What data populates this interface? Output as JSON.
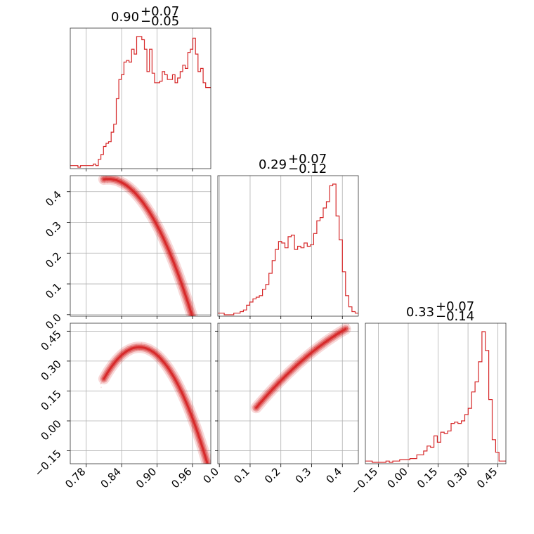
{
  "chart_data": {
    "type": "corner",
    "color": "#d62728",
    "parameters": [
      {
        "label": "",
        "median": "0.90",
        "plus": "+0.07",
        "minus": "−0.05",
        "range": [
          0.753,
          0.991
        ],
        "ticks": [
          0.78,
          0.84,
          0.9,
          0.96
        ],
        "tick_labels": [
          "0.78",
          "0.84",
          "0.90",
          "0.96"
        ]
      },
      {
        "label": "",
        "median": "0.29",
        "plus": "+0.07",
        "minus": "−0.12",
        "range": [
          -0.005,
          0.452
        ],
        "ticks": [
          0.0,
          0.1,
          0.2,
          0.3,
          0.4
        ],
        "tick_labels": [
          "0.0",
          "0.1",
          "0.2",
          "0.3",
          "0.4"
        ]
      },
      {
        "label": "",
        "median": "0.33",
        "plus": "+0.07",
        "minus": "−0.14",
        "range": [
          -0.215,
          0.49
        ],
        "ticks": [
          -0.15,
          0.0,
          0.15,
          0.3,
          0.45
        ],
        "tick_labels": [
          "−0.15",
          "0.00",
          "0.15",
          "0.30",
          "0.45"
        ]
      }
    ],
    "histograms": [
      {
        "param": 0,
        "counts": [
          1,
          1,
          1,
          0,
          1,
          1,
          1,
          1,
          1,
          2,
          1,
          5,
          8,
          13,
          15,
          16,
          22,
          27,
          43,
          55,
          58,
          66,
          67,
          66,
          74,
          71,
          82,
          82,
          80,
          74,
          60,
          74,
          59,
          53,
          53,
          54,
          60,
          58,
          55,
          55,
          58,
          53,
          56,
          60,
          64,
          62,
          72,
          74,
          81,
          71,
          60,
          62,
          53,
          50,
          50
        ]
      },
      {
        "param": 1,
        "counts": [
          1,
          1,
          0,
          0,
          0,
          1,
          1,
          2,
          3,
          6,
          8,
          10,
          11,
          12,
          16,
          19,
          26,
          34,
          41,
          46,
          45,
          42,
          49,
          50,
          41,
          43,
          42,
          45,
          43,
          44,
          51,
          59,
          61,
          67,
          71,
          81,
          82,
          62,
          47,
          27,
          12,
          5,
          2,
          1
        ]
      },
      {
        "param": 2,
        "counts": [
          1,
          1,
          0,
          0,
          0,
          0,
          1,
          0,
          1,
          1,
          2,
          2,
          2,
          3,
          3,
          6,
          6,
          9,
          13,
          12,
          21,
          16,
          24,
          23,
          25,
          31,
          32,
          31,
          33,
          38,
          43,
          56,
          64,
          80,
          104,
          89,
          50,
          18,
          8,
          1,
          1
        ]
      }
    ],
    "pairs": [
      {
        "x_param": 0,
        "y_param": 1,
        "relation": "strong negative correlation, curved"
      },
      {
        "x_param": 0,
        "y_param": 2,
        "relation": "strong negative correlation, concave down"
      },
      {
        "x_param": 1,
        "y_param": 2,
        "relation": "strong positive correlation"
      }
    ],
    "grid": true,
    "contours": true
  }
}
